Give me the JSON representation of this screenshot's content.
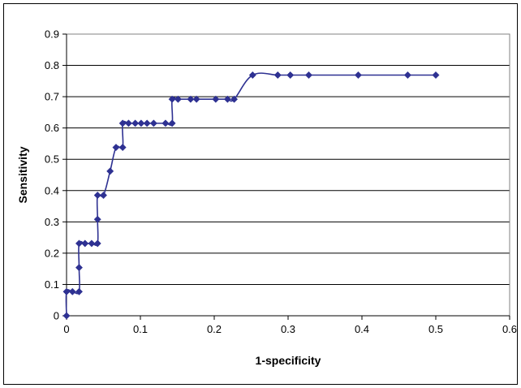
{
  "chart_data": {
    "type": "line",
    "title": "",
    "xlabel": "1-specificity",
    "ylabel": "Sensitivity",
    "xlim": [
      0,
      0.6
    ],
    "ylim": [
      0,
      0.9
    ],
    "xticks": [
      0,
      0.1,
      0.2,
      0.3,
      0.4,
      0.5,
      0.6
    ],
    "yticks": [
      0,
      0.1,
      0.2,
      0.3,
      0.4,
      0.5,
      0.6,
      0.7,
      0.8,
      0.9
    ],
    "xtick_labels": [
      "0",
      "0.1",
      "0.2",
      "0.3",
      "0.4",
      "0.5",
      "0.6"
    ],
    "ytick_labels": [
      "0",
      "0.1",
      "0.2",
      "0.3",
      "0.4",
      "0.5",
      "0.6",
      "0.7",
      "0.8",
      "0.9"
    ],
    "grid": "horizontal",
    "legend": "none",
    "colors": {
      "series": "#2e3192",
      "grid": "#000000",
      "plot_background": "#ffffff"
    },
    "series": [
      {
        "values": [
          [
            0,
            0
          ],
          [
            0,
            0.077
          ],
          [
            0.008,
            0.077
          ],
          [
            0.017,
            0.077
          ],
          [
            0.017,
            0.154
          ],
          [
            0.017,
            0.231
          ],
          [
            0.025,
            0.231
          ],
          [
            0.034,
            0.231
          ],
          [
            0.042,
            0.231
          ],
          [
            0.042,
            0.308
          ],
          [
            0.042,
            0.385
          ],
          [
            0.05,
            0.385
          ],
          [
            0.059,
            0.462
          ],
          [
            0.067,
            0.538
          ],
          [
            0.076,
            0.538
          ],
          [
            0.076,
            0.615
          ],
          [
            0.084,
            0.615
          ],
          [
            0.093,
            0.615
          ],
          [
            0.101,
            0.615
          ],
          [
            0.109,
            0.615
          ],
          [
            0.118,
            0.615
          ],
          [
            0.134,
            0.615
          ],
          [
            0.143,
            0.615
          ],
          [
            0.143,
            0.692
          ],
          [
            0.151,
            0.692
          ],
          [
            0.168,
            0.692
          ],
          [
            0.176,
            0.692
          ],
          [
            0.202,
            0.692
          ],
          [
            0.218,
            0.692
          ],
          [
            0.227,
            0.692
          ],
          [
            0.252,
            0.769
          ],
          [
            0.286,
            0.769
          ],
          [
            0.303,
            0.769
          ],
          [
            0.328,
            0.769
          ],
          [
            0.395,
            0.769
          ],
          [
            0.462,
            0.769
          ],
          [
            0.5,
            0.769
          ]
        ]
      }
    ]
  }
}
